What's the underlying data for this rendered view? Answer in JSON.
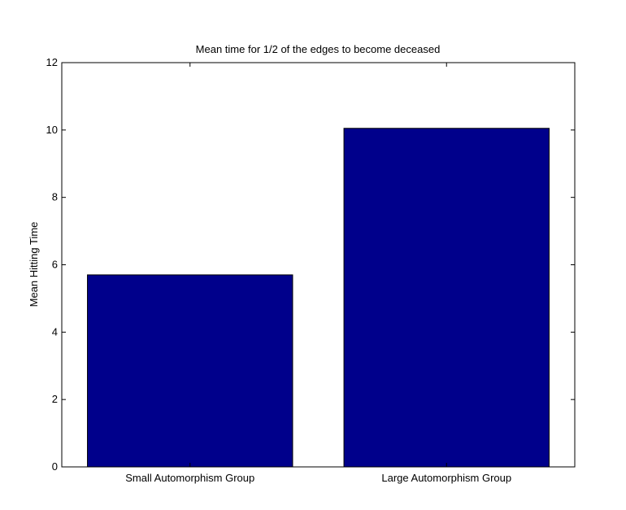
{
  "chart_data": {
    "type": "bar",
    "title": "Mean time for 1/2 of the edges to become deceased",
    "xlabel": "",
    "ylabel": "Mean Hitting Time",
    "categories": [
      "Small Automorphism Group",
      "Large Automorphism Group"
    ],
    "values": [
      5.7,
      10.05
    ],
    "ylim": [
      0,
      12
    ],
    "yticks": [
      "0",
      "2",
      "4",
      "6",
      "8",
      "10",
      "12"
    ],
    "grid": false,
    "bar_color": "#00008B"
  }
}
